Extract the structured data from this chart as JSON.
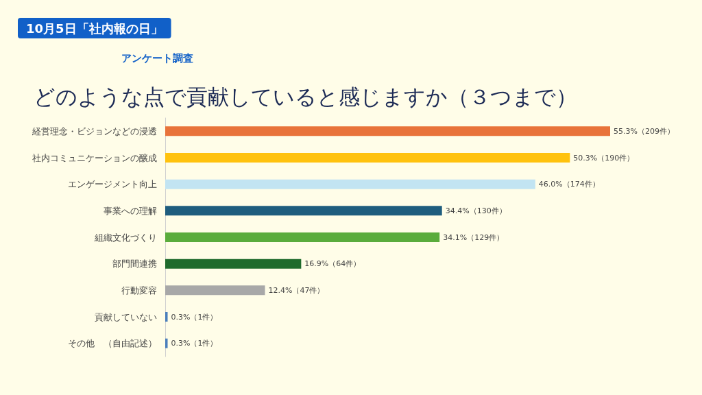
{
  "chart_data": {
    "type": "bar",
    "orientation": "horizontal",
    "title": "10月5日「社内報の日」",
    "subtitle": "アンケート調査",
    "annotations": [
      "どのような点で貢献していると感じますか（３つまで）"
    ],
    "categories": [
      "経営理念・ビジョンなどの浸透",
      "社内コミュニケーションの醸成",
      "エンゲージメント向上",
      "事業への理解",
      "組織文化づくり",
      "部門間連携",
      "行動変容",
      "貢献していない",
      "その他　（自由記述）"
    ],
    "values": [
      55.3,
      50.3,
      46.0,
      34.4,
      34.1,
      16.9,
      12.4,
      0.3,
      0.3
    ],
    "value_labels": [
      "55.3%（209件）",
      "50.3%（190件）",
      "46.0%（174件）",
      "34.4%（130件）",
      "34.1%（129件）",
      "16.9%（64件）",
      "12.4%（47件）",
      "0.3%（1件）",
      "0.3%（1件）"
    ],
    "colors": [
      "#e8733a",
      "#ffc20e",
      "#c2e4f2",
      "#1f5d7e",
      "#5aac3c",
      "#1f6b2c",
      "#a8a8a8",
      "#4a7ebb",
      "#4a7ebb"
    ]
  }
}
